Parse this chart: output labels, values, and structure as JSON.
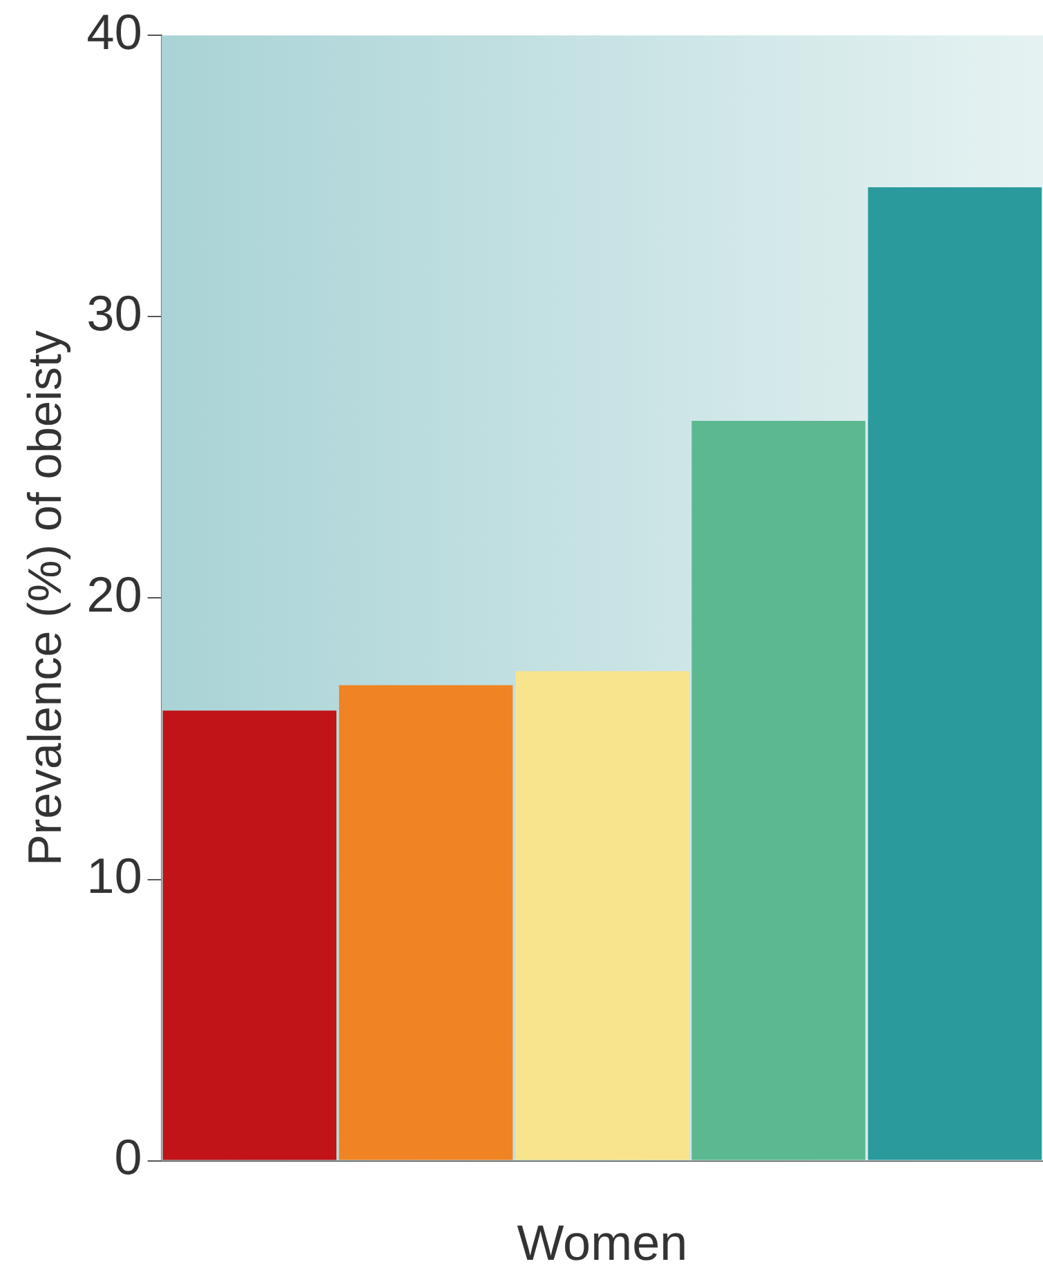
{
  "chart_data": {
    "type": "bar",
    "xlabel": "Women",
    "ylabel": "Prevalence (%) of obeisty",
    "categories": [
      null,
      null,
      null,
      null,
      null
    ],
    "values": [
      16.0,
      16.9,
      17.4,
      26.3,
      34.6
    ],
    "colors": [
      "#c01418",
      "#f08424",
      "#f8e48c",
      "#5cb890",
      "#2a9a9c"
    ],
    "ylim": [
      0,
      40
    ],
    "yticks": [
      0,
      10,
      20,
      30,
      40
    ],
    "grid": false,
    "legend": false
  }
}
